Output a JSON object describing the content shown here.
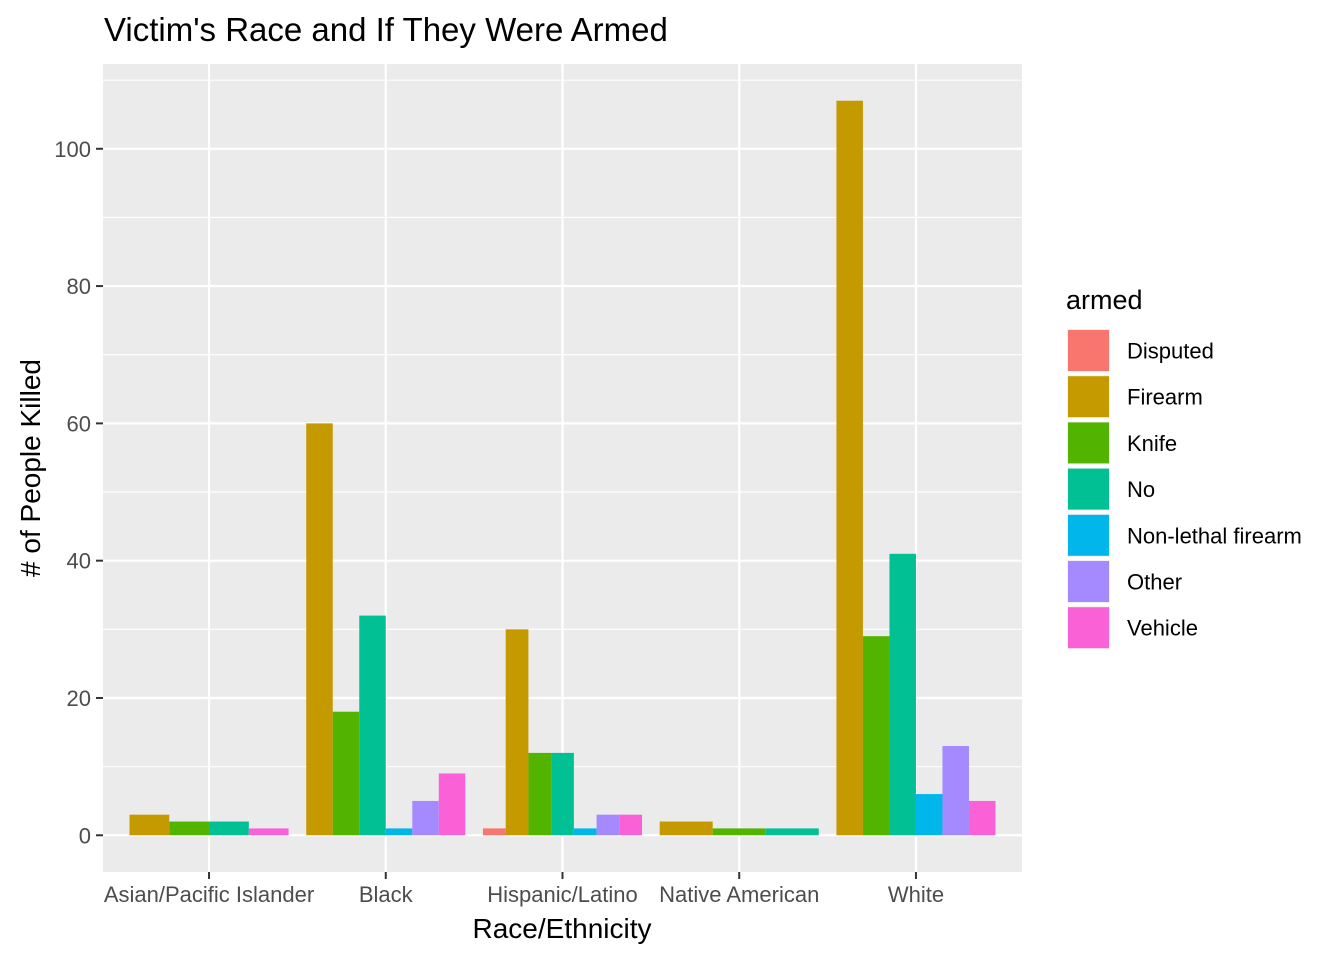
{
  "chart_data": {
    "type": "bar",
    "title": "Victim's Race and If They Were Armed",
    "xlabel": "Race/Ethnicity",
    "ylabel": "# of People Killed",
    "categories": [
      "Asian/Pacific Islander",
      "Black",
      "Hispanic/Latino",
      "Native American",
      "White"
    ],
    "ylim": [
      -5.35,
      112.35
    ],
    "yticks": [
      0,
      20,
      40,
      60,
      80,
      100
    ],
    "yticklabels": [
      "0",
      "20",
      "40",
      "60",
      "80",
      "100"
    ],
    "grid": true,
    "legend": {
      "title": "armed",
      "placement": "right",
      "labels": [
        "Disputed",
        "Firearm",
        "Knife",
        "No",
        "Non-lethal firearm",
        "Other",
        "Vehicle"
      ]
    },
    "series": [
      {
        "name": "Disputed",
        "color": "#F8766D",
        "values": [
          null,
          null,
          1,
          null,
          null
        ]
      },
      {
        "name": "Firearm",
        "color": "#C49A00",
        "values": [
          3,
          60,
          30,
          2,
          107
        ]
      },
      {
        "name": "Knife",
        "color": "#53B400",
        "values": [
          2,
          18,
          12,
          1,
          29
        ]
      },
      {
        "name": "No",
        "color": "#00C094",
        "values": [
          2,
          32,
          12,
          1,
          41
        ]
      },
      {
        "name": "Non-lethal firearm",
        "color": "#00B6EB",
        "values": [
          null,
          1,
          1,
          null,
          6
        ]
      },
      {
        "name": "Other",
        "color": "#A58AFF",
        "values": [
          null,
          5,
          3,
          null,
          13
        ]
      },
      {
        "name": "Vehicle",
        "color": "#FB61D7",
        "values": [
          1,
          9,
          3,
          null,
          5
        ]
      }
    ],
    "colors": {
      "panel_background": "#EBEBEB",
      "grid_line": "#FFFFFF",
      "axis_text": "#4D4D4D",
      "tick": "#333333",
      "title_text": "#000000"
    }
  }
}
